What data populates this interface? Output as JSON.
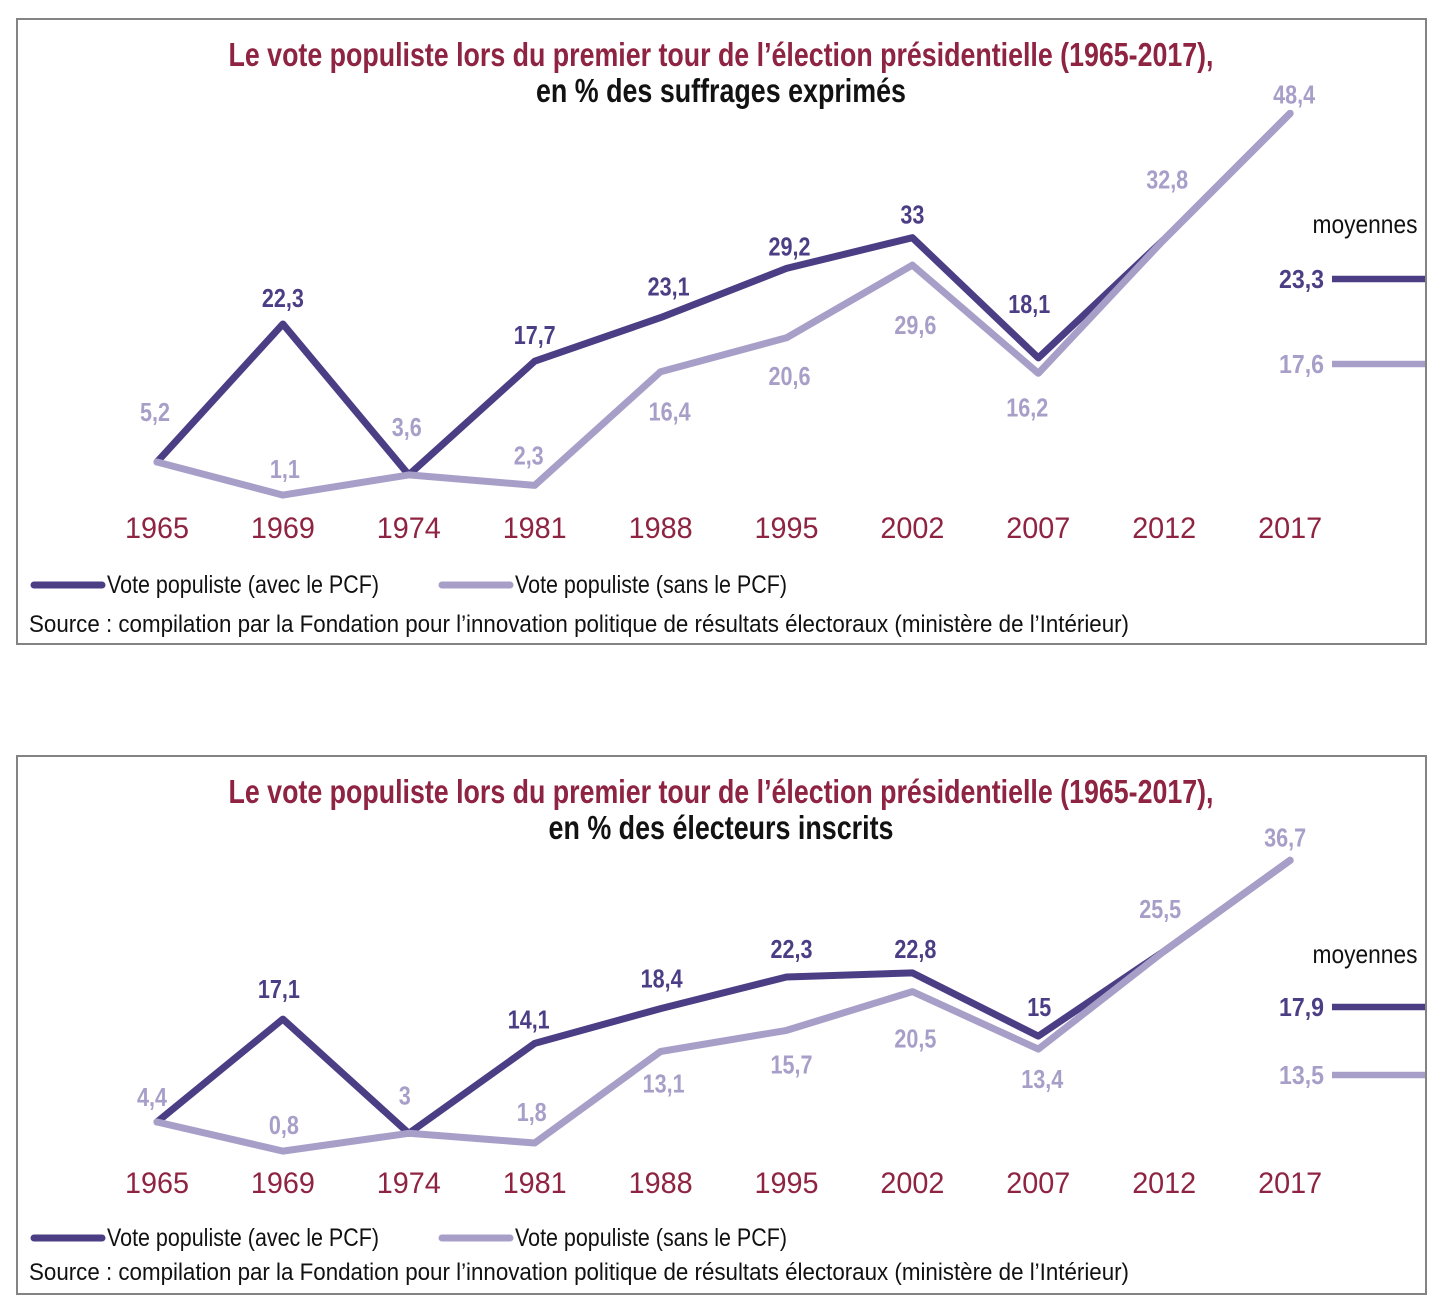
{
  "colors": {
    "avec_pcf_line": "#4c3e85",
    "sans_pcf_line": "#a89fc9",
    "title_and_years": "#8e2342",
    "text": "#111111",
    "panel_border": "#838383"
  },
  "chart_data": [
    {
      "type": "line",
      "title_line1": "Le vote populiste lors du premier tour de l’élection présidentielle (1965-2017),",
      "title_line2": "en % des suffrages exprimés",
      "categories": [
        "1965",
        "1969",
        "1974",
        "1981",
        "1988",
        "1995",
        "2002",
        "2007",
        "2012",
        "2017"
      ],
      "series": [
        {
          "name": "Vote populiste (avec le PCF)",
          "color": "#4c3e85",
          "values": [
            5.2,
            22.3,
            3.6,
            17.7,
            23.1,
            29.2,
            33,
            18.1,
            32.8,
            48.4
          ],
          "point_labels": [
            null,
            "22,3",
            null,
            "17,7",
            "23,1",
            "29,2",
            "33",
            "18,1",
            null,
            null
          ],
          "moyenne": 23.3,
          "moyenne_label": "23,3"
        },
        {
          "name": "Vote populiste (sans le PCF)",
          "color": "#a89fc9",
          "values": [
            5.2,
            1.1,
            3.6,
            2.3,
            16.4,
            20.6,
            29.6,
            16.2,
            32.8,
            48.4
          ],
          "point_labels": [
            "5,2",
            "1,1",
            "3,6",
            "2,3",
            "16,4",
            "20,6",
            "29,6",
            "16,2",
            "32,8",
            "48,4"
          ],
          "moyenne": 17.6,
          "moyenne_label": "17,6"
        }
      ],
      "moyennes_header": "moyennes",
      "source": "Source : compilation par la Fondation pour l’innovation politique de résultats électoraux (ministère de l’Intérieur)",
      "grid": false,
      "ylim": [
        0,
        55
      ],
      "legend_position": "bottom-left"
    },
    {
      "type": "line",
      "title_line1": "Le vote populiste lors du premier tour de l’élection présidentielle (1965-2017),",
      "title_line2": "en % des électeurs inscrits",
      "categories": [
        "1965",
        "1969",
        "1974",
        "1981",
        "1988",
        "1995",
        "2002",
        "2007",
        "2012",
        "2017"
      ],
      "series": [
        {
          "name": "Vote populiste (avec le PCF)",
          "color": "#4c3e85",
          "values": [
            4.4,
            17.1,
            3,
            14.1,
            18.4,
            22.3,
            22.8,
            15,
            25.5,
            36.7
          ],
          "point_labels": [
            null,
            "17,1",
            null,
            "14,1",
            "18,4",
            "22,3",
            "22,8",
            "15",
            null,
            null
          ],
          "moyenne": 17.9,
          "moyenne_label": "17,9"
        },
        {
          "name": "Vote populiste (sans le PCF)",
          "color": "#a89fc9",
          "values": [
            4.4,
            0.8,
            3,
            1.8,
            13.1,
            15.7,
            20.5,
            13.4,
            25.5,
            36.7
          ],
          "point_labels": [
            "4,4",
            "0,8",
            "3",
            "1,8",
            "13,1",
            "15,7",
            "20,5",
            "13,4",
            "25,5",
            "36,7"
          ],
          "moyenne": 13.5,
          "moyenne_label": "13,5"
        }
      ],
      "moyennes_header": "moyennes",
      "source": "Source : compilation par la Fondation pour l’innovation politique de résultats électoraux (ministère de l’Intérieur)",
      "grid": false,
      "ylim": [
        0,
        42
      ],
      "legend_position": "bottom-left"
    }
  ]
}
